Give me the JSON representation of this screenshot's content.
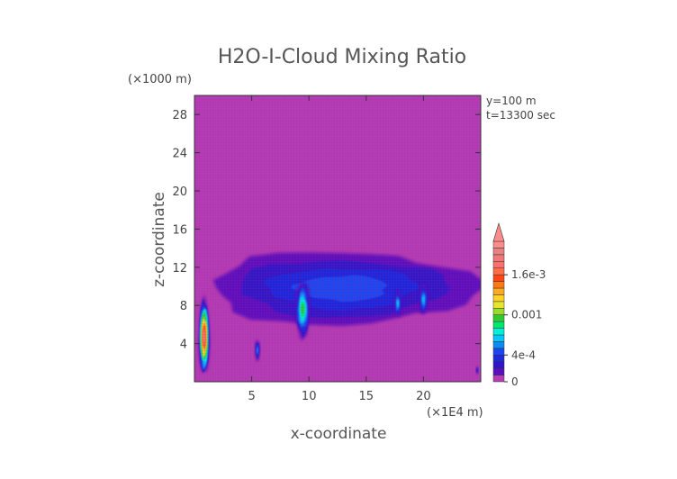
{
  "chart_data": {
    "type": "heatmap",
    "title": "H2O-I-Cloud Mixing Ratio",
    "xlabel": "x-coordinate",
    "ylabel": "z-coordinate",
    "x_unit": "(×1E4 m)",
    "y_unit": "(×1000 m)",
    "xlim": [
      0,
      25
    ],
    "ylim": [
      0,
      30
    ],
    "x_ticks": [
      5,
      10,
      15,
      20
    ],
    "y_ticks": [
      4,
      8,
      12,
      16,
      20,
      24,
      28
    ],
    "info_lines": [
      "y=100 m",
      "t=13300 sec"
    ],
    "colorbar": {
      "tick_labels": [
        "1.6e-3",
        "0.001",
        "4e-4",
        "0"
      ],
      "tick_values": [
        0.0016,
        0.001,
        0.0004,
        0
      ],
      "max": 0.0021,
      "levels": [
        {
          "v": 0.0,
          "color": "#b43cb4"
        },
        {
          "v": 0.0001,
          "color": "#5a0fbe"
        },
        {
          "v": 0.0002,
          "color": "#3214c8"
        },
        {
          "v": 0.0003,
          "color": "#1e28dc"
        },
        {
          "v": 0.0004,
          "color": "#1e46f0"
        },
        {
          "v": 0.0005,
          "color": "#0a8cf0"
        },
        {
          "v": 0.0006,
          "color": "#00c8ff"
        },
        {
          "v": 0.0007,
          "color": "#00f0dc"
        },
        {
          "v": 0.0008,
          "color": "#00e66e"
        },
        {
          "v": 0.0009,
          "color": "#32c832"
        },
        {
          "v": 0.001,
          "color": "#96dc28"
        },
        {
          "v": 0.0011,
          "color": "#e6e632"
        },
        {
          "v": 0.0012,
          "color": "#ffd228"
        },
        {
          "v": 0.0013,
          "color": "#ffaa1e"
        },
        {
          "v": 0.0014,
          "color": "#ff7814"
        },
        {
          "v": 0.0015,
          "color": "#ff4614"
        },
        {
          "v": 0.0016,
          "color": "#ff6e46"
        },
        {
          "v": 0.0017,
          "color": "#ff6e6e"
        },
        {
          "v": 0.0018,
          "color": "#f07878"
        },
        {
          "v": 0.0019,
          "color": "#e68282"
        },
        {
          "v": 0.002,
          "color": "#ff8c8c"
        }
      ]
    },
    "features": [
      {
        "x": [
          0.4,
          1.3
        ],
        "z": [
          0.8,
          8.6
        ],
        "max_value": 0.0019
      },
      {
        "x": [
          1.3,
          24.5
        ],
        "z": [
          6.0,
          13.6
        ],
        "max_value": 0.0004
      },
      {
        "x": [
          8.8,
          10.1
        ],
        "z": [
          4.6,
          10.6
        ],
        "max_value": 0.0009
      },
      {
        "x": [
          17.4,
          18.1
        ],
        "z": [
          6.8,
          9.6
        ],
        "max_value": 0.0006
      },
      {
        "x": [
          19.6,
          20.4
        ],
        "z": [
          7.0,
          10.2
        ],
        "max_value": 0.0006
      },
      {
        "x": [
          5.3,
          5.7
        ],
        "z": [
          2.2,
          4.4
        ],
        "max_value": 0.0005
      },
      {
        "x": [
          24.6,
          24.8
        ],
        "z": [
          0.8,
          1.6
        ],
        "max_value": 0.0003
      }
    ]
  }
}
